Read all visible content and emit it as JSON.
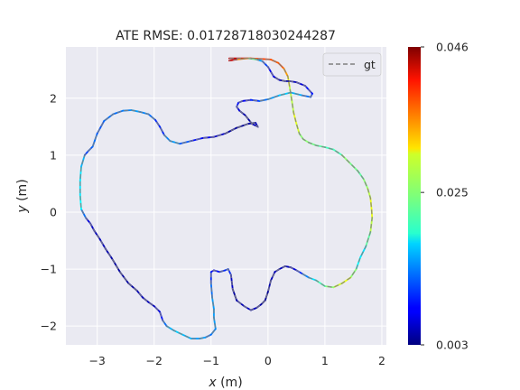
{
  "chart_data": {
    "type": "line",
    "title": "ATE RMSE: 0.01728718030244287",
    "xlabel_var": "x",
    "xlabel_unit": " (m)",
    "ylabel_var": "y",
    "ylabel_unit": " (m)",
    "xlim": [
      -3.55,
      2.08
    ],
    "ylim": [
      -2.33,
      2.9
    ],
    "xticks": [
      -3,
      -2,
      -1,
      0,
      1,
      2
    ],
    "yticks": [
      -2,
      -1,
      0,
      1,
      2
    ],
    "xtick_labels": [
      "−3",
      "−2",
      "−1",
      "0",
      "1",
      "2"
    ],
    "ytick_labels": [
      "−2",
      "−1",
      "0",
      "1",
      "2"
    ],
    "grid": true,
    "legend": {
      "placement": "top-right",
      "entries": [
        "gt"
      ]
    },
    "colorbar": {
      "colormap": "jet",
      "min": 0.003,
      "max": 0.046,
      "ticks": [
        0.003,
        0.025,
        0.046
      ],
      "tick_labels": [
        "0.003",
        "0.025",
        "0.046"
      ]
    },
    "series": [
      {
        "name": "gt",
        "style": "dashed",
        "color": "#808080",
        "x": [
          -0.68,
          -0.3,
          0.05,
          0.18,
          0.28,
          0.35,
          0.38,
          0.42,
          0.45,
          0.5,
          0.55,
          0.62,
          0.72,
          0.85,
          1.0,
          1.15,
          1.3,
          1.45,
          1.58,
          1.68,
          1.75,
          1.8,
          1.82,
          1.83,
          1.8,
          1.72,
          1.62,
          1.55,
          1.45,
          1.3,
          1.15,
          1.0,
          0.85,
          0.72,
          0.6,
          0.5,
          0.4,
          0.3,
          0.2,
          0.12,
          0.05,
          0.0,
          -0.05,
          -0.12,
          -0.2,
          -0.3,
          -0.42,
          -0.55,
          -0.62,
          -0.65,
          -0.7,
          -0.75,
          -0.85,
          -0.95,
          -1.0,
          -1.0,
          -0.98,
          -0.95,
          -0.95,
          -0.92,
          -1.0,
          -1.1,
          -1.2,
          -1.35,
          -1.5,
          -1.65,
          -1.78,
          -1.85,
          -1.9,
          -2.0,
          -2.1,
          -2.2,
          -2.3,
          -2.45,
          -2.6,
          -2.75,
          -2.85,
          -2.95,
          -3.05,
          -3.12,
          -3.2,
          -3.28,
          -3.3,
          -3.3,
          -3.28,
          -3.22,
          -3.15,
          -3.08,
          -3.0,
          -2.88,
          -2.72,
          -2.55,
          -2.4,
          -2.25,
          -2.1,
          -1.98,
          -1.9,
          -1.82,
          -1.72,
          -1.55,
          -1.35,
          -1.15,
          -0.95,
          -0.75,
          -0.55,
          -0.35,
          -0.22,
          -0.18,
          -0.28,
          -0.4,
          -0.5,
          -0.55,
          -0.52,
          -0.45,
          -0.3,
          -0.15,
          0.0,
          0.2,
          0.4,
          0.6,
          0.75,
          0.78,
          0.65,
          0.5,
          0.38,
          0.3,
          0.2,
          0.1,
          0.0,
          -0.1,
          -0.2,
          -0.35,
          -0.55,
          -0.68
        ],
        "y": [
          2.7,
          2.7,
          2.68,
          2.62,
          2.52,
          2.38,
          2.2,
          1.95,
          1.75,
          1.55,
          1.38,
          1.28,
          1.22,
          1.17,
          1.14,
          1.1,
          1.0,
          0.85,
          0.72,
          0.58,
          0.42,
          0.25,
          0.05,
          -0.1,
          -0.35,
          -0.6,
          -0.8,
          -1.0,
          -1.15,
          -1.25,
          -1.32,
          -1.3,
          -1.2,
          -1.15,
          -1.08,
          -1.02,
          -0.97,
          -0.95,
          -1.0,
          -1.05,
          -1.2,
          -1.4,
          -1.55,
          -1.62,
          -1.68,
          -1.72,
          -1.65,
          -1.55,
          -1.35,
          -1.1,
          -1.0,
          -1.02,
          -1.05,
          -1.02,
          -1.05,
          -1.25,
          -1.5,
          -1.7,
          -1.85,
          -2.05,
          -2.15,
          -2.2,
          -2.22,
          -2.22,
          -2.15,
          -2.08,
          -2.0,
          -1.9,
          -1.75,
          -1.65,
          -1.58,
          -1.5,
          -1.38,
          -1.25,
          -1.05,
          -0.8,
          -0.65,
          -0.48,
          -0.33,
          -0.2,
          -0.1,
          0.05,
          0.3,
          0.55,
          0.8,
          1.0,
          1.08,
          1.15,
          1.38,
          1.6,
          1.72,
          1.78,
          1.79,
          1.76,
          1.72,
          1.62,
          1.5,
          1.35,
          1.25,
          1.2,
          1.25,
          1.3,
          1.32,
          1.38,
          1.48,
          1.55,
          1.57,
          1.5,
          1.55,
          1.7,
          1.78,
          1.85,
          1.92,
          1.95,
          1.97,
          1.95,
          1.98,
          2.05,
          2.1,
          2.05,
          2.02,
          2.08,
          2.22,
          2.28,
          2.3,
          2.3,
          2.32,
          2.38,
          2.55,
          2.65,
          2.68,
          2.7,
          2.68,
          2.66
        ]
      }
    ],
    "trajectory_error": [
      0.046,
      0.04,
      0.036,
      0.038,
      0.036,
      0.032,
      0.028,
      0.026,
      0.028,
      0.03,
      0.026,
      0.024,
      0.026,
      0.022,
      0.024,
      0.02,
      0.024,
      0.026,
      0.022,
      0.024,
      0.026,
      0.028,
      0.03,
      0.028,
      0.026,
      0.02,
      0.016,
      0.022,
      0.028,
      0.03,
      0.026,
      0.024,
      0.02,
      0.016,
      0.012,
      0.008,
      0.006,
      0.005,
      0.006,
      0.005,
      0.006,
      0.004,
      0.004,
      0.004,
      0.005,
      0.006,
      0.006,
      0.005,
      0.004,
      0.008,
      0.012,
      0.01,
      0.01,
      0.008,
      0.008,
      0.012,
      0.014,
      0.016,
      0.014,
      0.016,
      0.012,
      0.014,
      0.016,
      0.014,
      0.018,
      0.016,
      0.016,
      0.01,
      0.008,
      0.006,
      0.005,
      0.006,
      0.005,
      0.004,
      0.005,
      0.004,
      0.006,
      0.005,
      0.006,
      0.006,
      0.008,
      0.018,
      0.02,
      0.016,
      0.02,
      0.012,
      0.01,
      0.014,
      0.012,
      0.012,
      0.014,
      0.012,
      0.016,
      0.014,
      0.014,
      0.012,
      0.008,
      0.012,
      0.016,
      0.014,
      0.01,
      0.008,
      0.007,
      0.005,
      0.004,
      0.004,
      0.005,
      0.006,
      0.005,
      0.004,
      0.006,
      0.008,
      0.01,
      0.008,
      0.008,
      0.012,
      0.014,
      0.016,
      0.018,
      0.014,
      0.012,
      0.01,
      0.008,
      0.006,
      0.005,
      0.004,
      0.005,
      0.006,
      0.01,
      0.012,
      0.018,
      0.03,
      0.04,
      0.046
    ]
  }
}
